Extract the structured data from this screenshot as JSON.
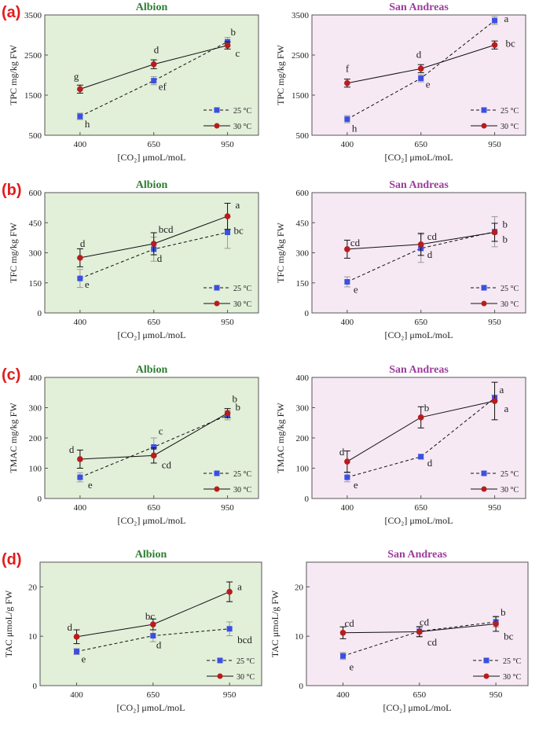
{
  "colors": {
    "albion_bg": "#e2efd9",
    "sanandreas_bg": "#f6e9f4",
    "albion_title": "#2e7d32",
    "sanandreas_title": "#9c3d9c",
    "s25": "#3b4fe0",
    "s30": "#b81c1c",
    "panel_letter": "#e21b1b"
  },
  "chart_data": [
    {
      "id": "a-albion",
      "panel": "(a)",
      "type": "line",
      "title": "Albion",
      "bg": "albion",
      "x": [
        "400",
        "650",
        "950"
      ],
      "ylabel": "TPC mg/kg FW",
      "xlabel": "[CO₂] μmoL/moL",
      "ylim": [
        500,
        3500
      ],
      "yticks": [
        500,
        1500,
        2500,
        3500
      ],
      "series": [
        {
          "name": "25 °C",
          "values": [
            970,
            1860,
            2830
          ],
          "err": [
            80,
            100,
            110
          ],
          "letters": [
            "h",
            "ef",
            "b"
          ]
        },
        {
          "name": "30 °C",
          "values": [
            1650,
            2270,
            2740
          ],
          "err": [
            100,
            110,
            90
          ],
          "letters": [
            "g",
            "d",
            "c"
          ]
        }
      ]
    },
    {
      "id": "a-sanandreas",
      "panel": "",
      "type": "line",
      "title": "San Andreas",
      "bg": "sanandreas",
      "x": [
        "400",
        "650",
        "950"
      ],
      "ylabel": "TPC mg/kg FW",
      "xlabel": "[CO₂] μmoL/moL",
      "ylim": [
        500,
        3500
      ],
      "yticks": [
        500,
        1500,
        2500,
        3500
      ],
      "series": [
        {
          "name": "25 °C",
          "values": [
            900,
            1920,
            3360
          ],
          "err": [
            90,
            90,
            100
          ],
          "letters": [
            "h",
            "e",
            "a"
          ]
        },
        {
          "name": "30 °C",
          "values": [
            1800,
            2160,
            2750
          ],
          "err": [
            100,
            100,
            100
          ],
          "letters": [
            "f",
            "d",
            "bc"
          ]
        }
      ]
    },
    {
      "id": "b-albion",
      "panel": "(b)",
      "type": "line",
      "title": "Albion",
      "bg": "albion",
      "x": [
        "400",
        "650",
        "950"
      ],
      "ylabel": "TFC mg/kg FW",
      "xlabel": "[CO₂] μmoL/moL",
      "ylim": [
        0,
        600
      ],
      "yticks": [
        0,
        150,
        300,
        450,
        600
      ],
      "series": [
        {
          "name": "25 °C",
          "values": [
            172,
            318,
            402
          ],
          "err": [
            45,
            60,
            80
          ],
          "letters": [
            "e",
            "d",
            "bc"
          ]
        },
        {
          "name": "30 °C",
          "values": [
            275,
            345,
            482
          ],
          "err": [
            45,
            55,
            65
          ],
          "letters": [
            "d",
            "bcd",
            "a"
          ]
        }
      ]
    },
    {
      "id": "b-sanandreas",
      "panel": "",
      "type": "line",
      "title": "San Andreas",
      "bg": "sanandreas",
      "x": [
        "400",
        "650",
        "950"
      ],
      "ylabel": "TFC mg/kg FW",
      "xlabel": "[CO₂] μmoL/moL",
      "ylim": [
        0,
        600
      ],
      "yticks": [
        0,
        150,
        300,
        450,
        600
      ],
      "series": [
        {
          "name": "25 °C",
          "values": [
            155,
            322,
            405
          ],
          "err": [
            25,
            70,
            75
          ],
          "letters": [
            "e",
            "d",
            "b"
          ]
        },
        {
          "name": "30 °C",
          "values": [
            318,
            342,
            402
          ],
          "err": [
            45,
            55,
            45
          ],
          "letters": [
            "cd",
            "cd",
            "b"
          ]
        }
      ]
    },
    {
      "id": "c-albion",
      "panel": "(c)",
      "type": "line",
      "title": "Albion",
      "bg": "albion",
      "x": [
        "400",
        "650",
        "950"
      ],
      "ylabel": "TMAC mg/kg FW",
      "xlabel": "[CO₂] μmoL/moL",
      "ylim": [
        0,
        400
      ],
      "yticks": [
        0,
        100,
        200,
        300,
        400
      ],
      "series": [
        {
          "name": "25 °C",
          "values": [
            70,
            170,
            275
          ],
          "err": [
            15,
            30,
            15
          ],
          "letters": [
            "e",
            "c",
            "b"
          ]
        },
        {
          "name": "30 °C",
          "values": [
            130,
            142,
            282
          ],
          "err": [
            30,
            25,
            15
          ],
          "letters": [
            "d",
            "cd",
            "b"
          ]
        }
      ]
    },
    {
      "id": "c-sanandreas",
      "panel": "",
      "type": "line",
      "title": "San Andreas",
      "bg": "sanandreas",
      "x": [
        "400",
        "650",
        "950"
      ],
      "ylabel": "TMAC mg/kg FW",
      "xlabel": "[CO₂] μmoL/moL",
      "ylim": [
        0,
        400
      ],
      "yticks": [
        0,
        100,
        200,
        300,
        400
      ],
      "series": [
        {
          "name": "25 °C",
          "values": [
            70,
            138,
            332
          ],
          "err": [
            15,
            8,
            10
          ],
          "letters": [
            "e",
            "d",
            "a"
          ]
        },
        {
          "name": "30 °C",
          "values": [
            122,
            268,
            322
          ],
          "err": [
            35,
            35,
            62
          ],
          "letters": [
            "d",
            "b",
            "a"
          ]
        }
      ]
    },
    {
      "id": "d-albion",
      "panel": "(d)",
      "type": "line",
      "title": "Albion",
      "bg": "albion",
      "x": [
        "400",
        "650",
        "950"
      ],
      "ylabel": "TAC μmoL/g FW",
      "xlabel": "[CO₂] μmoL/moL",
      "ylim": [
        0,
        25
      ],
      "yticks": [
        0,
        10,
        20
      ],
      "series": [
        {
          "name": "25 °C",
          "values": [
            6.9,
            10.1,
            11.5
          ],
          "err": [
            0.6,
            1.2,
            1.4
          ],
          "letters": [
            "e",
            "d",
            "bcd"
          ]
        },
        {
          "name": "30 °C",
          "values": [
            9.9,
            12.4,
            19.0
          ],
          "err": [
            1.4,
            1.1,
            2.0
          ],
          "letters": [
            "d",
            "bc",
            "a"
          ]
        }
      ]
    },
    {
      "id": "d-sanandreas",
      "panel": "",
      "type": "line",
      "title": "San Andreas",
      "bg": "sanandreas",
      "x": [
        "400",
        "650",
        "950"
      ],
      "ylabel": "TAC μmoL/g FW",
      "xlabel": "[CO₂] μmoL/moL",
      "ylim": [
        0,
        25
      ],
      "yticks": [
        0,
        10,
        20
      ],
      "series": [
        {
          "name": "25 °C",
          "values": [
            6.0,
            11.0,
            12.9
          ],
          "err": [
            0.7,
            1.0,
            1.0
          ],
          "letters": [
            "e",
            "cd",
            "b"
          ]
        },
        {
          "name": "30 °C",
          "values": [
            10.7,
            10.9,
            12.5
          ],
          "err": [
            1.2,
            1.0,
            1.5
          ],
          "letters": [
            "cd",
            "cd",
            "bc"
          ]
        }
      ]
    }
  ]
}
